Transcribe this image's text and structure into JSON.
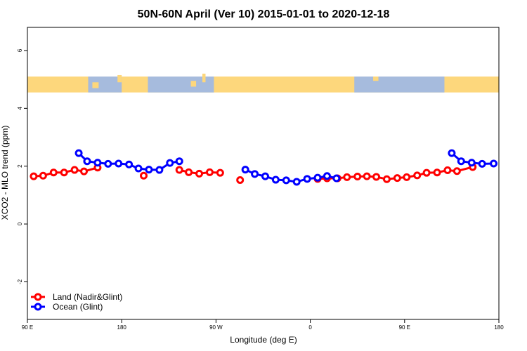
{
  "chart_data": {
    "type": "line",
    "title": "50N-60N April (Ver 10)   2015-01-01 to 2020-12-18",
    "xlabel": "Longitude (deg E)",
    "ylabel": "XCO2 - MLO trend (ppm)",
    "xlim": [
      90,
      540
    ],
    "ylim": [
      -3.3,
      6.8
    ],
    "x_ticks": [
      {
        "value": 90,
        "label": "90 E"
      },
      {
        "value": 180,
        "label": "180"
      },
      {
        "value": 270,
        "label": "90 W"
      },
      {
        "value": 360,
        "label": "0"
      },
      {
        "value": 450,
        "label": "90 E"
      },
      {
        "value": 540,
        "label": "180"
      }
    ],
    "y_ticks": [
      {
        "value": -2,
        "label": "-2"
      },
      {
        "value": 0,
        "label": "0"
      },
      {
        "value": 2,
        "label": "2"
      },
      {
        "value": 4,
        "label": "4"
      },
      {
        "value": 6,
        "label": "6"
      }
    ],
    "map_band": {
      "ymin": 4.55,
      "ymax": 5.1,
      "ocean_color": "#a6bbdd",
      "land_color": "#fdd77c"
    },
    "legend_position": "bottom-left",
    "grid": false,
    "series": [
      {
        "name": "Land (Nadir&Glint)",
        "color": "#ff0000",
        "segments": [
          [
            [
              96,
              1.65
            ],
            [
              105,
              1.67
            ],
            [
              115,
              1.78
            ],
            [
              125,
              1.78
            ],
            [
              135,
              1.87
            ],
            [
              144,
              1.82
            ],
            [
              157,
              1.95
            ]
          ],
          [
            [
              201,
              1.67
            ]
          ],
          [
            [
              235,
              1.87
            ],
            [
              244,
              1.79
            ],
            [
              254,
              1.74
            ],
            [
              264,
              1.79
            ],
            [
              274,
              1.77
            ]
          ],
          [
            [
              293,
              1.52
            ]
          ],
          [
            [
              367,
              1.56
            ],
            [
              376,
              1.58
            ],
            [
              386,
              1.58
            ],
            [
              395,
              1.62
            ],
            [
              405,
              1.64
            ],
            [
              414,
              1.65
            ],
            [
              423,
              1.63
            ],
            [
              433,
              1.55
            ],
            [
              443,
              1.59
            ],
            [
              452,
              1.62
            ],
            [
              462,
              1.68
            ],
            [
              471,
              1.77
            ],
            [
              481,
              1.78
            ],
            [
              491,
              1.86
            ],
            [
              500,
              1.83
            ],
            [
              515,
              1.97
            ]
          ]
        ]
      },
      {
        "name": "Ocean (Glint)",
        "color": "#0000ff",
        "segments": [
          [
            [
              139,
              2.45
            ],
            [
              147,
              2.17
            ],
            [
              157,
              2.12
            ],
            [
              167,
              2.08
            ],
            [
              177,
              2.09
            ],
            [
              187,
              2.06
            ],
            [
              196,
              1.92
            ],
            [
              206,
              1.88
            ],
            [
              216,
              1.87
            ],
            [
              226,
              2.11
            ],
            [
              235,
              2.17
            ]
          ],
          [
            [
              298,
              1.88
            ],
            [
              307,
              1.73
            ],
            [
              317,
              1.65
            ],
            [
              327,
              1.53
            ],
            [
              337,
              1.51
            ],
            [
              347,
              1.46
            ],
            [
              357,
              1.56
            ],
            [
              367,
              1.6
            ],
            [
              376,
              1.66
            ],
            [
              385,
              1.58
            ]
          ],
          [
            [
              495,
              2.45
            ],
            [
              504,
              2.17
            ],
            [
              514,
              2.12
            ],
            [
              524,
              2.08
            ],
            [
              535,
              2.09
            ]
          ]
        ]
      }
    ]
  }
}
